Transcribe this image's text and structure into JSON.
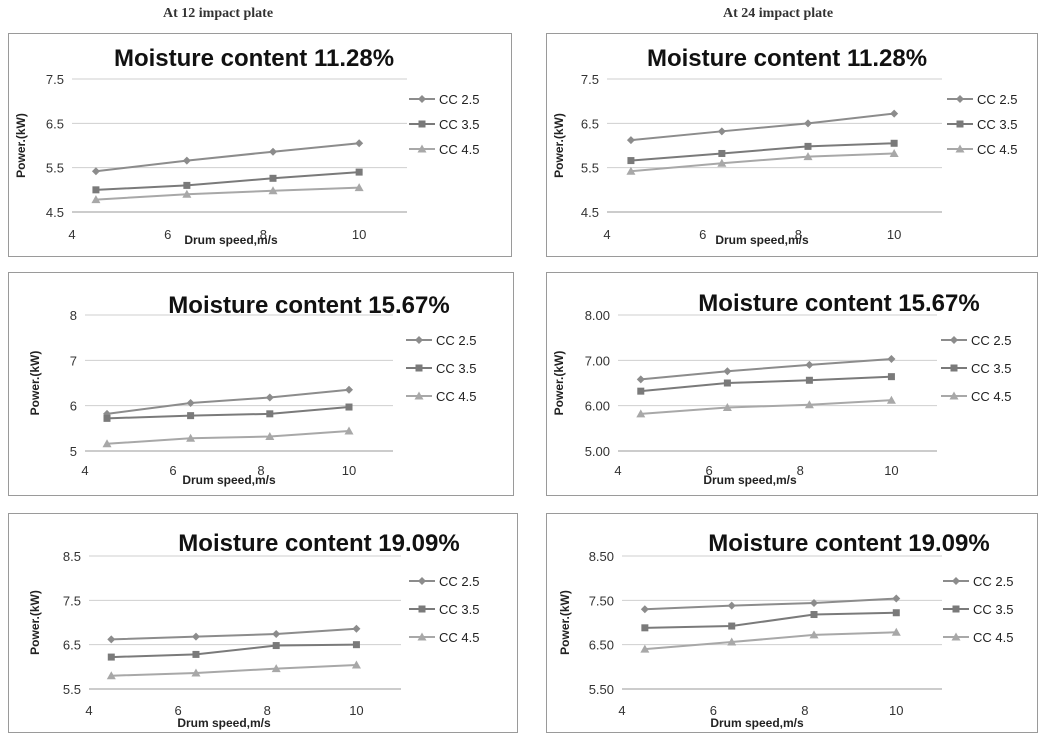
{
  "headers": {
    "left": "At 12 impact plate",
    "right": "At 24 impact plate"
  },
  "colors": {
    "cc25": "#8c8c8c",
    "cc35": "#7a7a7a",
    "cc45": "#a8a8a8",
    "grid": "#cfcfcf"
  },
  "chart_data": [
    {
      "type": "line",
      "title": "Moisture content 11.28%",
      "xlabel": "Drum speed,m/s",
      "ylabel": "Power.(kW)",
      "xlim": [
        4,
        11
      ],
      "xticks": [
        "4",
        "6",
        "8",
        "10"
      ],
      "ylim": [
        4.5,
        7.5
      ],
      "yticks": [
        "4.5",
        "5.5",
        "6.5",
        "7.5"
      ],
      "x": [
        4.5,
        6.4,
        8.2,
        10
      ],
      "series": [
        {
          "name": "CC 2.5",
          "marker": "diamond",
          "values": [
            5.42,
            5.66,
            5.86,
            6.05
          ]
        },
        {
          "name": "CC 3.5",
          "marker": "square",
          "values": [
            5.0,
            5.1,
            5.26,
            5.4
          ]
        },
        {
          "name": "CC 4.5",
          "marker": "triangle",
          "values": [
            4.78,
            4.9,
            4.98,
            5.05
          ]
        }
      ]
    },
    {
      "type": "line",
      "title": "Moisture content 11.28%",
      "xlabel": "Drum speed,m/s",
      "ylabel": "Power.(kW)",
      "xlim": [
        4,
        11
      ],
      "xticks": [
        "4",
        "6",
        "8",
        "10"
      ],
      "ylim": [
        4.5,
        7.5
      ],
      "yticks": [
        "4.5",
        "5.5",
        "6.5",
        "7.5"
      ],
      "x": [
        4.5,
        6.4,
        8.2,
        10
      ],
      "series": [
        {
          "name": "CC 2.5",
          "marker": "diamond",
          "values": [
            6.12,
            6.32,
            6.5,
            6.72
          ]
        },
        {
          "name": "CC 3.5",
          "marker": "square",
          "values": [
            5.66,
            5.82,
            5.98,
            6.05
          ]
        },
        {
          "name": "CC 4.5",
          "marker": "triangle",
          "values": [
            5.42,
            5.6,
            5.75,
            5.82
          ]
        }
      ]
    },
    {
      "type": "line",
      "title": "Moisture content 15.67%",
      "xlabel": "Drum speed,m/s",
      "ylabel": "Power.(kW)",
      "xlim": [
        4,
        11
      ],
      "xticks": [
        "4",
        "6",
        "8",
        "10"
      ],
      "ylim": [
        5,
        8
      ],
      "yticks": [
        "5",
        "6",
        "7",
        "8"
      ],
      "x": [
        4.5,
        6.4,
        8.2,
        10
      ],
      "series": [
        {
          "name": "CC 2.5",
          "marker": "diamond",
          "values": [
            5.82,
            6.06,
            6.18,
            6.35
          ]
        },
        {
          "name": "CC 3.5",
          "marker": "square",
          "values": [
            5.72,
            5.78,
            5.82,
            5.97
          ]
        },
        {
          "name": "CC 4.5",
          "marker": "triangle",
          "values": [
            5.16,
            5.28,
            5.32,
            5.44
          ]
        }
      ]
    },
    {
      "type": "line",
      "title": "Moisture content 15.67%",
      "xlabel": "Drum speed,m/s",
      "ylabel": "Power.(kW)",
      "xlim": [
        4,
        11
      ],
      "xticks": [
        "4",
        "6",
        "8",
        "10"
      ],
      "ylim": [
        5,
        8
      ],
      "yticks": [
        "5.00",
        "6.00",
        "7.00",
        "8.00"
      ],
      "x": [
        4.5,
        6.4,
        8.2,
        10
      ],
      "series": [
        {
          "name": "CC 2.5",
          "marker": "diamond",
          "values": [
            6.58,
            6.76,
            6.9,
            7.03
          ]
        },
        {
          "name": "CC 3.5",
          "marker": "square",
          "values": [
            6.32,
            6.5,
            6.56,
            6.64
          ]
        },
        {
          "name": "CC 4.5",
          "marker": "triangle",
          "values": [
            5.82,
            5.96,
            6.02,
            6.12
          ]
        }
      ]
    },
    {
      "type": "line",
      "title": "Moisture content 19.09%",
      "xlabel": "Drum speed,m/s",
      "ylabel": "Power.(kW)",
      "xlim": [
        4,
        11
      ],
      "xticks": [
        "4",
        "6",
        "8",
        "10"
      ],
      "ylim": [
        5.5,
        8.5
      ],
      "yticks": [
        "5.5",
        "6.5",
        "7.5",
        "8.5"
      ],
      "x": [
        4.5,
        6.4,
        8.2,
        10
      ],
      "series": [
        {
          "name": "CC 2.5",
          "marker": "diamond",
          "values": [
            6.62,
            6.68,
            6.74,
            6.86
          ]
        },
        {
          "name": "CC 3.5",
          "marker": "square",
          "values": [
            6.22,
            6.28,
            6.48,
            6.5
          ]
        },
        {
          "name": "CC 4.5",
          "marker": "triangle",
          "values": [
            5.8,
            5.86,
            5.96,
            6.04
          ]
        }
      ]
    },
    {
      "type": "line",
      "title": "Moisture content 19.09%",
      "xlabel": "Drum speed,m/s",
      "ylabel": "Power.(kW)",
      "xlim": [
        4,
        11
      ],
      "xticks": [
        "4",
        "6",
        "8",
        "10"
      ],
      "ylim": [
        5.5,
        8.5
      ],
      "yticks": [
        "5.50",
        "6.50",
        "7.50",
        "8.50"
      ],
      "x": [
        4.5,
        6.4,
        8.2,
        10
      ],
      "series": [
        {
          "name": "CC 2.5",
          "marker": "diamond",
          "values": [
            7.3,
            7.38,
            7.44,
            7.54
          ]
        },
        {
          "name": "CC 3.5",
          "marker": "square",
          "values": [
            6.88,
            6.92,
            7.18,
            7.22
          ]
        },
        {
          "name": "CC 4.5",
          "marker": "triangle",
          "values": [
            6.4,
            6.56,
            6.72,
            6.78
          ]
        }
      ]
    }
  ]
}
